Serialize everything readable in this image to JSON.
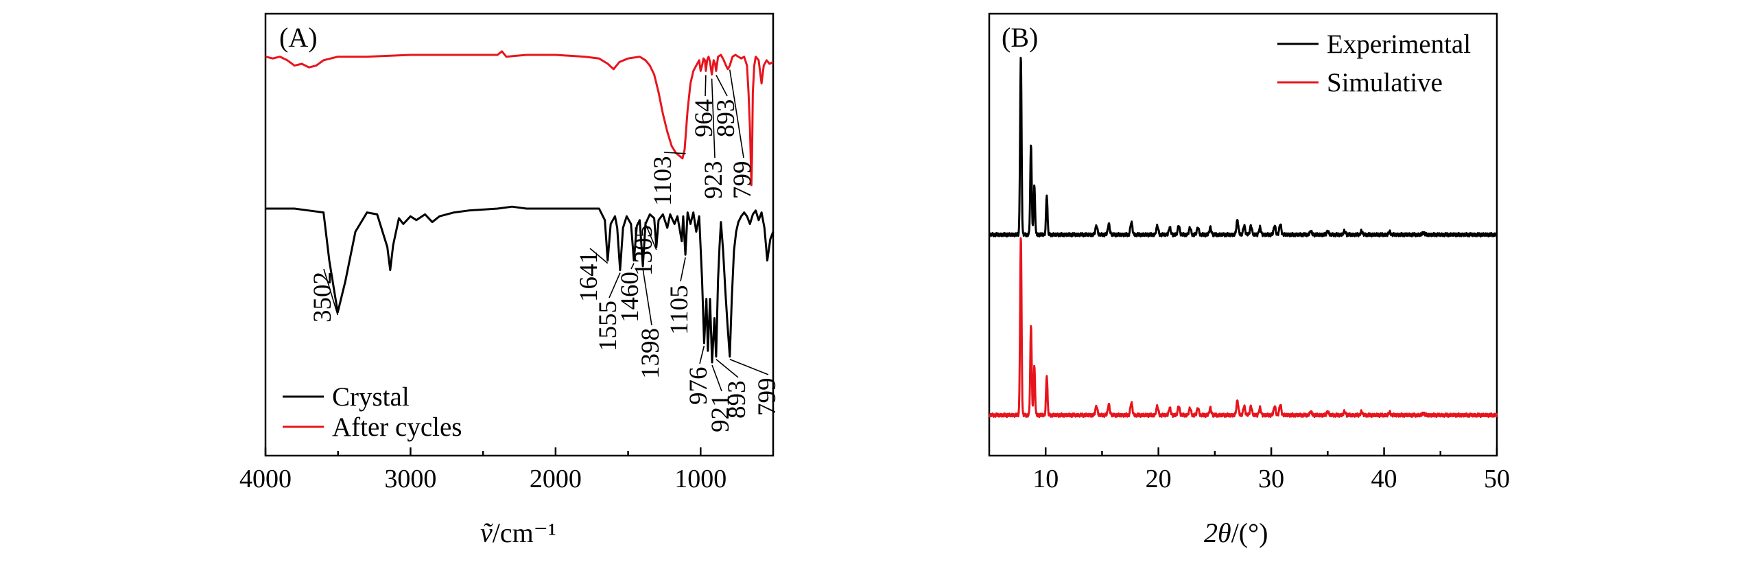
{
  "colors": {
    "black": "#000000",
    "red": "#e8141c"
  },
  "chart_data": [
    {
      "type": "line",
      "panel_label": "(A)",
      "xlabel_symbol": "ṽ",
      "xlabel_unit": "/cm⁻¹",
      "xlim": [
        4000,
        500
      ],
      "xticks": [
        4000,
        3000,
        2000,
        1000
      ],
      "yticks": false,
      "legend_position": "bottom-left",
      "series": [
        {
          "name": "Crystal",
          "color": "#000000",
          "offset": 0.0,
          "points": [
            [
              4000,
              0.82
            ],
            [
              3800,
              0.82
            ],
            [
              3700,
              0.81
            ],
            [
              3600,
              0.8
            ],
            [
              3560,
              0.55
            ],
            [
              3502,
              0.28
            ],
            [
              3450,
              0.44
            ],
            [
              3380,
              0.7
            ],
            [
              3300,
              0.8
            ],
            [
              3230,
              0.79
            ],
            [
              3160,
              0.62
            ],
            [
              3140,
              0.5
            ],
            [
              3120,
              0.63
            ],
            [
              3080,
              0.77
            ],
            [
              3050,
              0.74
            ],
            [
              3000,
              0.78
            ],
            [
              2960,
              0.76
            ],
            [
              2900,
              0.79
            ],
            [
              2850,
              0.75
            ],
            [
              2800,
              0.78
            ],
            [
              2700,
              0.8
            ],
            [
              2600,
              0.81
            ],
            [
              2400,
              0.82
            ],
            [
              2300,
              0.83
            ],
            [
              2200,
              0.82
            ],
            [
              2000,
              0.82
            ],
            [
              1800,
              0.82
            ],
            [
              1700,
              0.82
            ],
            [
              1660,
              0.76
            ],
            [
              1641,
              0.55
            ],
            [
              1620,
              0.74
            ],
            [
              1590,
              0.78
            ],
            [
              1575,
              0.72
            ],
            [
              1555,
              0.5
            ],
            [
              1535,
              0.72
            ],
            [
              1510,
              0.78
            ],
            [
              1480,
              0.74
            ],
            [
              1460,
              0.55
            ],
            [
              1440,
              0.73
            ],
            [
              1420,
              0.76
            ],
            [
              1398,
              0.52
            ],
            [
              1380,
              0.74
            ],
            [
              1350,
              0.79
            ],
            [
              1320,
              0.77
            ],
            [
              1305,
              0.62
            ],
            [
              1290,
              0.76
            ],
            [
              1260,
              0.79
            ],
            [
              1230,
              0.72
            ],
            [
              1210,
              0.79
            ],
            [
              1180,
              0.74
            ],
            [
              1160,
              0.78
            ],
            [
              1130,
              0.65
            ],
            [
              1120,
              0.78
            ],
            [
              1105,
              0.58
            ],
            [
              1090,
              0.8
            ],
            [
              1070,
              0.74
            ],
            [
              1050,
              0.8
            ],
            [
              1030,
              0.7
            ],
            [
              1010,
              0.78
            ],
            [
              990,
              0.45
            ],
            [
              976,
              0.12
            ],
            [
              960,
              0.35
            ],
            [
              950,
              0.08
            ],
            [
              935,
              0.35
            ],
            [
              921,
              0.02
            ],
            [
              905,
              0.25
            ],
            [
              893,
              0.05
            ],
            [
              880,
              0.45
            ],
            [
              870,
              0.62
            ],
            [
              860,
              0.75
            ],
            [
              845,
              0.6
            ],
            [
              830,
              0.4
            ],
            [
              815,
              0.22
            ],
            [
              799,
              0.05
            ],
            [
              785,
              0.35
            ],
            [
              770,
              0.6
            ],
            [
              755,
              0.7
            ],
            [
              740,
              0.75
            ],
            [
              720,
              0.78
            ],
            [
              700,
              0.8
            ],
            [
              680,
              0.78
            ],
            [
              660,
              0.74
            ],
            [
              640,
              0.79
            ],
            [
              620,
              0.81
            ],
            [
              600,
              0.76
            ],
            [
              580,
              0.8
            ],
            [
              560,
              0.72
            ],
            [
              540,
              0.55
            ],
            [
              520,
              0.66
            ],
            [
              500,
              0.7
            ]
          ]
        },
        {
          "name": "After cycles",
          "color": "#e8141c",
          "offset": 0.0,
          "points": [
            [
              4000,
              1.6
            ],
            [
              3950,
              1.59
            ],
            [
              3900,
              1.6
            ],
            [
              3850,
              1.58
            ],
            [
              3800,
              1.55
            ],
            [
              3750,
              1.56
            ],
            [
              3700,
              1.54
            ],
            [
              3650,
              1.55
            ],
            [
              3600,
              1.58
            ],
            [
              3500,
              1.6
            ],
            [
              3300,
              1.6
            ],
            [
              3000,
              1.61
            ],
            [
              2700,
              1.61
            ],
            [
              2400,
              1.61
            ],
            [
              2370,
              1.63
            ],
            [
              2340,
              1.6
            ],
            [
              2200,
              1.61
            ],
            [
              2000,
              1.61
            ],
            [
              1800,
              1.6
            ],
            [
              1700,
              1.59
            ],
            [
              1640,
              1.56
            ],
            [
              1600,
              1.53
            ],
            [
              1560,
              1.57
            ],
            [
              1500,
              1.59
            ],
            [
              1420,
              1.6
            ],
            [
              1380,
              1.58
            ],
            [
              1350,
              1.55
            ],
            [
              1320,
              1.5
            ],
            [
              1290,
              1.4
            ],
            [
              1260,
              1.28
            ],
            [
              1230,
              1.18
            ],
            [
              1200,
              1.1
            ],
            [
              1170,
              1.06
            ],
            [
              1140,
              1.04
            ],
            [
              1125,
              1.03
            ],
            [
              1110,
              1.08
            ],
            [
              1090,
              1.3
            ],
            [
              1070,
              1.45
            ],
            [
              1050,
              1.52
            ],
            [
              1030,
              1.55
            ],
            [
              1010,
              1.58
            ],
            [
              1000,
              1.52
            ],
            [
              990,
              1.55
            ],
            [
              980,
              1.59
            ],
            [
              970,
              1.58
            ],
            [
              964,
              1.52
            ],
            [
              955,
              1.58
            ],
            [
              945,
              1.6
            ],
            [
              935,
              1.57
            ],
            [
              923,
              1.5
            ],
            [
              910,
              1.58
            ],
            [
              900,
              1.56
            ],
            [
              893,
              1.52
            ],
            [
              880,
              1.6
            ],
            [
              860,
              1.61
            ],
            [
              840,
              1.58
            ],
            [
              825,
              1.55
            ],
            [
              812,
              1.53
            ],
            [
              799,
              1.55
            ],
            [
              780,
              1.6
            ],
            [
              760,
              1.61
            ],
            [
              740,
              1.6
            ],
            [
              720,
              1.59
            ],
            [
              700,
              1.6
            ],
            [
              680,
              1.55
            ],
            [
              670,
              1.4
            ],
            [
              660,
              1.2
            ],
            [
              650,
              0.88
            ],
            [
              645,
              1.05
            ],
            [
              640,
              1.4
            ],
            [
              630,
              1.55
            ],
            [
              620,
              1.6
            ],
            [
              600,
              1.58
            ],
            [
              580,
              1.45
            ],
            [
              565,
              1.55
            ],
            [
              545,
              1.58
            ],
            [
              525,
              1.56
            ],
            [
              500,
              1.57
            ]
          ]
        }
      ],
      "annotations_crystal": [
        {
          "text": "3502",
          "x": 3502
        },
        {
          "text": "1641",
          "x": 1641
        },
        {
          "text": "1555",
          "x": 1555
        },
        {
          "text": "1460",
          "x": 1460
        },
        {
          "text": "1398",
          "x": 1398
        },
        {
          "text": "1305",
          "x": 1305
        },
        {
          "text": "1105",
          "x": 1105
        },
        {
          "text": "976",
          "x": 976
        },
        {
          "text": "921",
          "x": 921
        },
        {
          "text": "893",
          "x": 893
        },
        {
          "text": "799",
          "x": 799
        }
      ],
      "annotations_after": [
        {
          "text": "1103",
          "x": 1103
        },
        {
          "text": "964",
          "x": 964
        },
        {
          "text": "923",
          "x": 923
        },
        {
          "text": "893",
          "x": 893
        },
        {
          "text": "799",
          "x": 799
        }
      ]
    },
    {
      "type": "line",
      "panel_label": "(B)",
      "xlabel_symbol": "2θ",
      "xlabel_unit": "/(°)",
      "xlim": [
        5,
        50
      ],
      "xticks": [
        10,
        20,
        30,
        40,
        50
      ],
      "yticks": false,
      "legend_position": "top-right",
      "peaks": [
        {
          "pos": 7.8,
          "h": 1.0
        },
        {
          "pos": 8.7,
          "h": 0.5
        },
        {
          "pos": 9.0,
          "h": 0.27
        },
        {
          "pos": 10.1,
          "h": 0.22
        },
        {
          "pos": 14.5,
          "h": 0.05
        },
        {
          "pos": 15.6,
          "h": 0.06
        },
        {
          "pos": 17.6,
          "h": 0.07
        },
        {
          "pos": 19.9,
          "h": 0.05
        },
        {
          "pos": 21.0,
          "h": 0.04
        },
        {
          "pos": 21.8,
          "h": 0.05
        },
        {
          "pos": 22.8,
          "h": 0.04
        },
        {
          "pos": 23.5,
          "h": 0.04
        },
        {
          "pos": 24.6,
          "h": 0.04
        },
        {
          "pos": 27.0,
          "h": 0.08
        },
        {
          "pos": 27.6,
          "h": 0.05
        },
        {
          "pos": 28.2,
          "h": 0.05
        },
        {
          "pos": 29.0,
          "h": 0.04
        },
        {
          "pos": 30.3,
          "h": 0.05
        },
        {
          "pos": 30.8,
          "h": 0.06
        },
        {
          "pos": 33.5,
          "h": 0.02
        },
        {
          "pos": 35.0,
          "h": 0.02
        },
        {
          "pos": 36.5,
          "h": 0.02
        },
        {
          "pos": 38.0,
          "h": 0.02
        },
        {
          "pos": 40.5,
          "h": 0.015
        },
        {
          "pos": 43.5,
          "h": 0.012
        }
      ],
      "series": [
        {
          "name": "Experimental",
          "color": "#000000"
        },
        {
          "name": "Simulative",
          "color": "#e8141c"
        }
      ]
    }
  ]
}
